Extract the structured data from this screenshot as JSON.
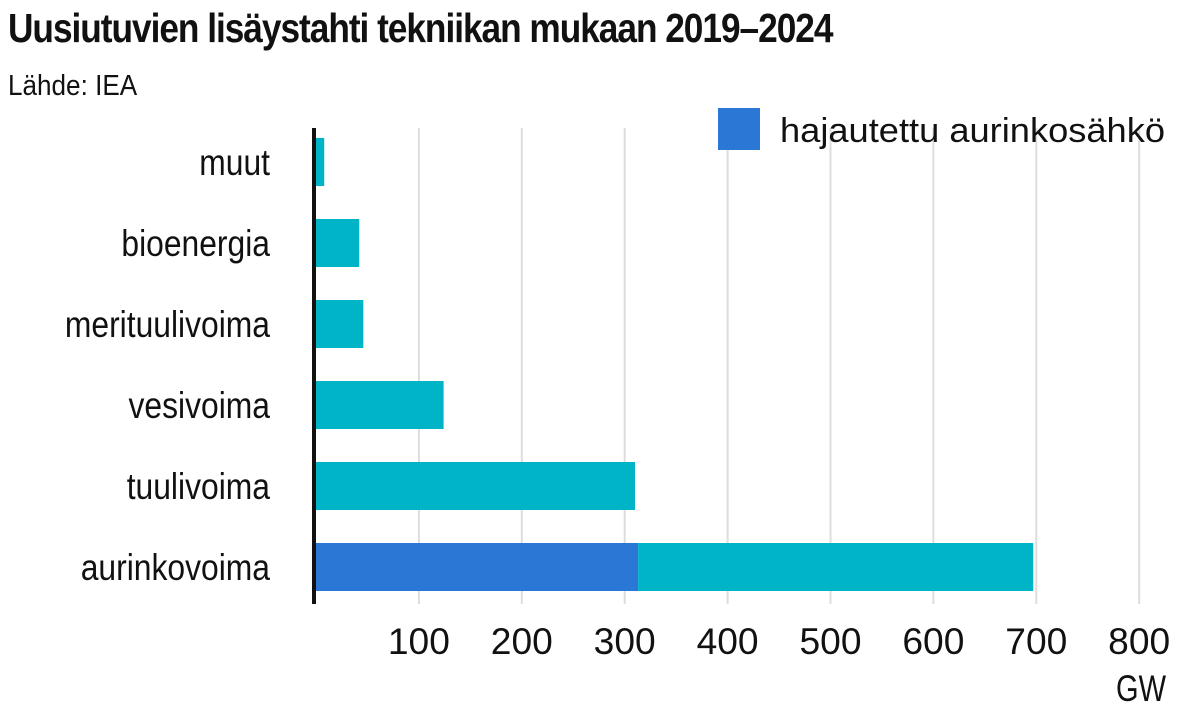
{
  "header": {
    "title": "Uusiutuvien lisäystahti tekniikan mukaan 2019–2024",
    "source": "Lähde: IEA"
  },
  "colors": {
    "main_bar": "#00b4c8",
    "distributed_solar": "#2b77d5",
    "axis": "#111111",
    "grid": "#dddddd"
  },
  "chart_data": {
    "type": "bar",
    "orientation": "horizontal",
    "stacked": true,
    "title": "Uusiutuvien lisäystahti tekniikan mukaan 2019–2024",
    "categories": [
      "muut",
      "bioenergia",
      "merituulivoima",
      "vesivoima",
      "tuulivoima",
      "aurinkovoima"
    ],
    "totals": [
      8,
      42,
      46,
      124,
      310,
      697
    ],
    "series": [
      {
        "name": "hajautettu aurinkosähkö",
        "values": [
          0,
          0,
          0,
          0,
          0,
          313
        ]
      }
    ],
    "x_unit": "GW",
    "xlim": [
      0,
      800
    ],
    "x_ticks": [
      100,
      200,
      300,
      400,
      500,
      600,
      700,
      800
    ],
    "grid": "vertical",
    "legend_position": "top-right"
  }
}
